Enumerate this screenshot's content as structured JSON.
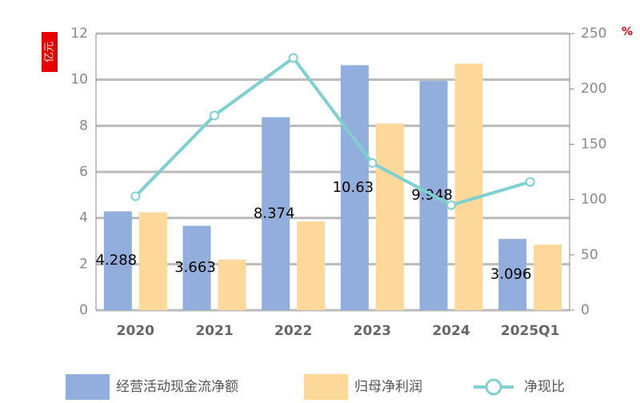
{
  "chart_data": {
    "type": "bar_line",
    "y_unit": "亿元",
    "y2_unit": "%",
    "categories": [
      "2020",
      "2021",
      "2022",
      "2023",
      "2024",
      "2025Q1"
    ],
    "series": [
      {
        "name": "经营活动现金流净额",
        "color": "#92aedd",
        "type": "bar",
        "values": [
          4.288,
          3.663,
          8.374,
          10.63,
          9.948,
          3.096
        ]
      },
      {
        "name": "归母净利润",
        "color": "#fcd99a",
        "type": "bar",
        "values": [
          4.25,
          2.2,
          3.85,
          8.1,
          10.7,
          2.85
        ]
      },
      {
        "name": "净现比",
        "color": "#7fd0d0",
        "type": "line",
        "axis": "y2",
        "values": [
          103,
          176,
          228,
          133,
          95,
          116
        ]
      }
    ],
    "ylim": [
      0,
      12
    ],
    "yticks": [
      0,
      2,
      4,
      6,
      8,
      10,
      12
    ],
    "y2lim": [
      0,
      250
    ],
    "y2ticks": [
      0,
      50,
      100,
      150,
      200,
      250
    ],
    "grid": true
  }
}
